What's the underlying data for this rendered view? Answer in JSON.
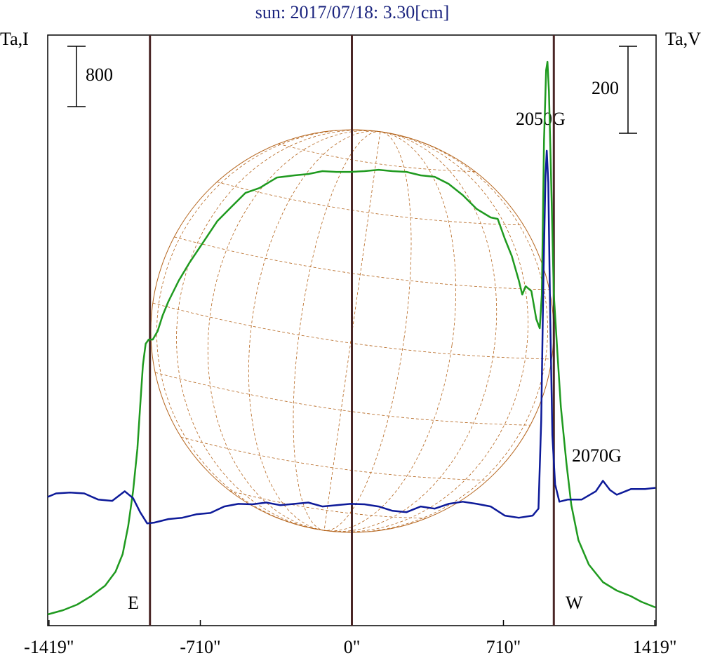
{
  "chart_data": {
    "type": "line",
    "title": "sun: 2017/07/18: 3.30[cm]",
    "ylabel": "Ta,I",
    "y2label": "Ta,V",
    "xlim": [
      -1425,
      1425
    ],
    "ylim": [
      0,
      7833
    ],
    "y2lim": [
      -277,
      1081
    ],
    "xticks": [
      {
        "value": -1419,
        "label": "-1419\""
      },
      {
        "value": -710,
        "label": "-710\""
      },
      {
        "value": 0,
        "label": "0\""
      },
      {
        "value": 710,
        "label": "710\""
      },
      {
        "value": 1419,
        "label": "1419\""
      }
    ],
    "limb_lines": [
      -946,
      0,
      946
    ],
    "limb_color": "#4a2626",
    "scale_bars": [
      {
        "value": 800
      },
      {
        "value": 200,
        "axis": "y2"
      }
    ],
    "annotations": [
      {
        "text": "2050G"
      },
      {
        "text": "2070G"
      },
      {
        "text": "E"
      },
      {
        "text": "W"
      }
    ],
    "series": [
      {
        "color": "#1f9a1f",
        "x": [
          -1425,
          -1353,
          -1287,
          -1222,
          -1156,
          -1107,
          -1074,
          -1048,
          -1025,
          -1005,
          -992,
          -979,
          -966,
          -952,
          -933,
          -910,
          -887,
          -860,
          -811,
          -762,
          -696,
          -630,
          -565,
          -499,
          -433,
          -351,
          -269,
          -204,
          -138,
          -72,
          -7,
          59,
          125,
          190,
          256,
          322,
          388,
          453,
          519,
          585,
          650,
          683,
          716,
          749,
          782,
          798,
          814,
          841,
          864,
          880,
          890,
          900,
          910,
          916,
          923,
          933,
          946,
          962,
          979,
          1005,
          1028,
          1061,
          1110,
          1176,
          1241,
          1307,
          1356,
          1422
        ],
        "values": [
          149,
          205,
          279,
          391,
          530,
          716,
          949,
          1321,
          1786,
          2344,
          2902,
          3460,
          3739,
          3795,
          3795,
          3907,
          4112,
          4298,
          4577,
          4809,
          5088,
          5367,
          5553,
          5739,
          5804,
          5944,
          5972,
          5990,
          6028,
          6018,
          6018,
          6028,
          6046,
          6028,
          6018,
          5972,
          5953,
          5860,
          5711,
          5525,
          5414,
          5395,
          5135,
          4902,
          4577,
          4391,
          4502,
          4437,
          4065,
          3944,
          4391,
          6437,
          7367,
          7479,
          7088,
          5972,
          4391,
          3646,
          2902,
          2158,
          1600,
          1135,
          809,
          577,
          465,
          391,
          316,
          242
        ]
      },
      {
        "color": "#0d1a99",
        "axis": "y2",
        "x": [
          -1425,
          -1386,
          -1320,
          -1254,
          -1189,
          -1123,
          -1064,
          -1025,
          -992,
          -959,
          -926,
          -860,
          -795,
          -729,
          -663,
          -598,
          -532,
          -466,
          -401,
          -335,
          -269,
          -204,
          -138,
          -72,
          -7,
          59,
          125,
          190,
          256,
          322,
          388,
          453,
          519,
          585,
          650,
          716,
          782,
          847,
          874,
          887,
          897,
          907,
          913,
          920,
          929,
          939,
          952,
          972,
          1012,
          1077,
          1143,
          1176,
          1209,
          1241,
          1307,
          1373,
          1422
        ],
        "values": [
          19,
          27,
          29,
          27,
          13,
          10,
          32,
          16,
          -16,
          -42,
          -40,
          -32,
          -29,
          -21,
          -18,
          -3,
          3,
          2,
          6,
          0,
          3,
          6,
          -3,
          0,
          3,
          2,
          -3,
          -13,
          -16,
          -3,
          -8,
          3,
          8,
          3,
          -3,
          -24,
          -29,
          -24,
          -8,
          194,
          516,
          758,
          815,
          742,
          436,
          161,
          48,
          8,
          13,
          13,
          32,
          56,
          35,
          24,
          37,
          37,
          40
        ]
      }
    ]
  }
}
